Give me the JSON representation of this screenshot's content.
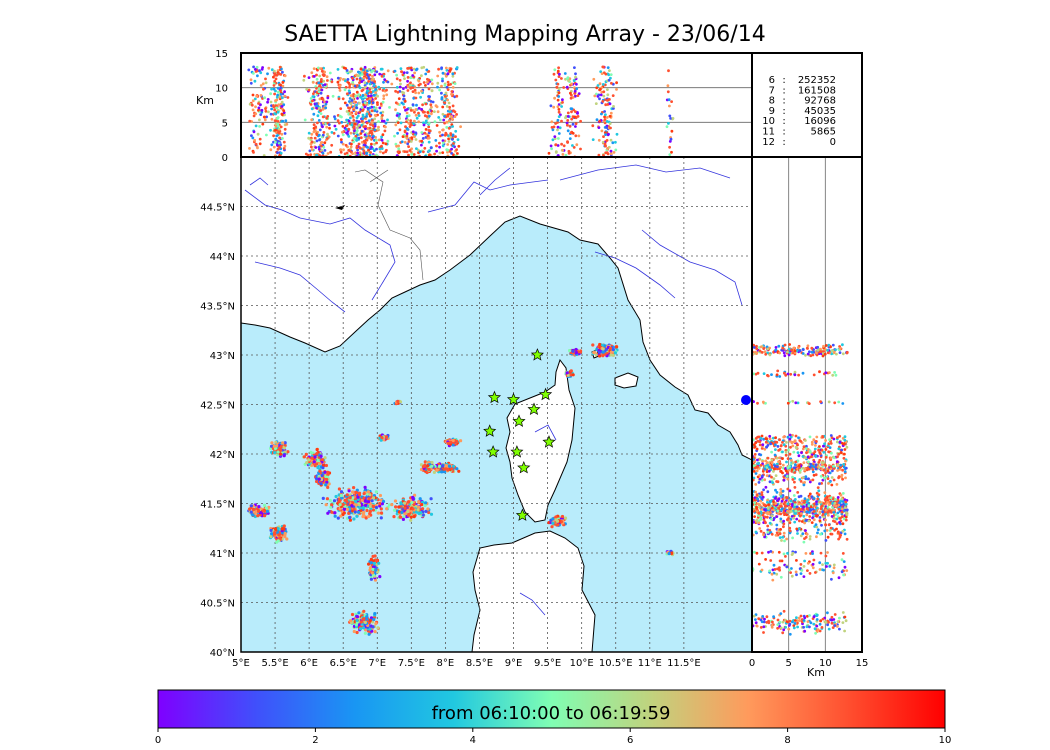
{
  "title": "SAETTA Lightning Mapping Array - 23/06/14",
  "colors": {
    "sea": "#b9ecfb",
    "land": "#ffffff",
    "coast": "#000000",
    "rivers": "#3333dd",
    "borders": "#555555",
    "station": "#7fff00",
    "highlight": "#ff0000"
  },
  "chart_data": {
    "type": "scatter",
    "map": {
      "xlim": [
        5,
        12.5
      ],
      "ylim": [
        40,
        45
      ],
      "lon_ticks": [
        "5°E",
        "5.5°E",
        "6°E",
        "6.5°E",
        "7°E",
        "7.5°E",
        "8°E",
        "8.5°E",
        "9°E",
        "9.5°E",
        "10°E",
        "10.5°E",
        "11°E",
        "11.5°E"
      ],
      "lat_ticks": [
        "40°N",
        "40.5°N",
        "41°N",
        "41.5°N",
        "42°N",
        "42.5°N",
        "43°N",
        "43.5°N",
        "44°N",
        "44.5°N"
      ],
      "grid": true
    },
    "altitude_panel": {
      "ylabel": "Km",
      "ylim": [
        0,
        15
      ],
      "yticks": [
        "0",
        "5",
        "10",
        "15"
      ]
    },
    "side_panel": {
      "xlabel": "Km",
      "xlim": [
        0,
        15
      ],
      "xticks": [
        "0",
        "5",
        "10",
        "15"
      ]
    },
    "station_counts": [
      {
        "stations": "6",
        "sep": ":",
        "count": "252352",
        "highlight": false
      },
      {
        "stations": "7",
        "sep": ":",
        "count": "161508",
        "highlight": true
      },
      {
        "stations": "8",
        "sep": ":",
        "count": "92768",
        "highlight": false
      },
      {
        "stations": "9",
        "sep": ":",
        "count": "45035",
        "highlight": false
      },
      {
        "stations": "10",
        "sep": ":",
        "count": "16096",
        "highlight": false
      },
      {
        "stations": "11",
        "sep": ":",
        "count": "5865",
        "highlight": false
      },
      {
        "stations": "12",
        "sep": ":",
        "count": "0",
        "highlight": false
      }
    ],
    "stations": [
      [
        9.35,
        43.0
      ],
      [
        8.72,
        42.57
      ],
      [
        9.0,
        42.55
      ],
      [
        9.47,
        42.6
      ],
      [
        9.3,
        42.45
      ],
      [
        9.08,
        42.33
      ],
      [
        8.65,
        42.23
      ],
      [
        9.52,
        42.12
      ],
      [
        8.7,
        42.02
      ],
      [
        9.05,
        42.02
      ],
      [
        9.15,
        41.86
      ],
      [
        9.13,
        41.38
      ]
    ],
    "cells": [
      {
        "lon": 5.55,
        "lat": 42.05,
        "rx": 0.15,
        "ry": 0.1,
        "n": 90,
        "zmin": 0,
        "zmax": 13
      },
      {
        "lon": 6.1,
        "lat": 41.95,
        "rx": 0.2,
        "ry": 0.12,
        "n": 110,
        "zmin": 0,
        "zmax": 13
      },
      {
        "lon": 6.2,
        "lat": 41.75,
        "rx": 0.15,
        "ry": 0.12,
        "n": 90,
        "zmin": 0,
        "zmax": 13
      },
      {
        "lon": 5.25,
        "lat": 41.42,
        "rx": 0.22,
        "ry": 0.08,
        "n": 90,
        "zmin": 0,
        "zmax": 13
      },
      {
        "lon": 5.55,
        "lat": 41.2,
        "rx": 0.18,
        "ry": 0.1,
        "n": 90,
        "zmin": 0,
        "zmax": 13
      },
      {
        "lon": 6.7,
        "lat": 41.5,
        "rx": 0.55,
        "ry": 0.2,
        "n": 320,
        "zmin": 0,
        "zmax": 13
      },
      {
        "lon": 7.5,
        "lat": 41.45,
        "rx": 0.35,
        "ry": 0.15,
        "n": 200,
        "zmin": 0,
        "zmax": 13
      },
      {
        "lon": 8.0,
        "lat": 41.86,
        "rx": 0.25,
        "ry": 0.06,
        "n": 110,
        "zmin": 0,
        "zmax": 13
      },
      {
        "lon": 7.75,
        "lat": 41.87,
        "rx": 0.14,
        "ry": 0.08,
        "n": 70,
        "zmin": 0,
        "zmax": 13
      },
      {
        "lon": 8.1,
        "lat": 42.12,
        "rx": 0.15,
        "ry": 0.05,
        "n": 60,
        "zmin": 0,
        "zmax": 13
      },
      {
        "lon": 7.1,
        "lat": 42.17,
        "rx": 0.12,
        "ry": 0.04,
        "n": 40,
        "zmin": 0,
        "zmax": 13
      },
      {
        "lon": 6.95,
        "lat": 40.85,
        "rx": 0.1,
        "ry": 0.15,
        "n": 80,
        "zmin": 0,
        "zmax": 13
      },
      {
        "lon": 6.8,
        "lat": 40.3,
        "rx": 0.3,
        "ry": 0.15,
        "n": 150,
        "zmin": 0,
        "zmax": 13
      },
      {
        "lon": 7.3,
        "lat": 42.52,
        "rx": 0.06,
        "ry": 0.02,
        "n": 20,
        "zmin": 0,
        "zmax": 13
      },
      {
        "lon": 9.65,
        "lat": 41.32,
        "rx": 0.15,
        "ry": 0.08,
        "n": 70,
        "zmin": 0,
        "zmax": 13
      },
      {
        "lon": 9.9,
        "lat": 43.03,
        "rx": 0.1,
        "ry": 0.04,
        "n": 50,
        "zmin": 0,
        "zmax": 13
      },
      {
        "lon": 10.35,
        "lat": 43.05,
        "rx": 0.22,
        "ry": 0.08,
        "n": 130,
        "zmin": 0,
        "zmax": 13
      },
      {
        "lon": 9.82,
        "lat": 42.81,
        "rx": 0.08,
        "ry": 0.04,
        "n": 30,
        "zmin": 0,
        "zmax": 13
      },
      {
        "lon": 11.3,
        "lat": 41.0,
        "rx": 0.1,
        "ry": 0.03,
        "n": 20,
        "zmin": 0,
        "zmax": 13
      }
    ]
  },
  "colorbar": {
    "label": "from 06:10:00 to 06:19:59",
    "ticks": [
      "0",
      "2",
      "4",
      "6",
      "8",
      "10"
    ],
    "range": [
      0,
      10
    ]
  }
}
